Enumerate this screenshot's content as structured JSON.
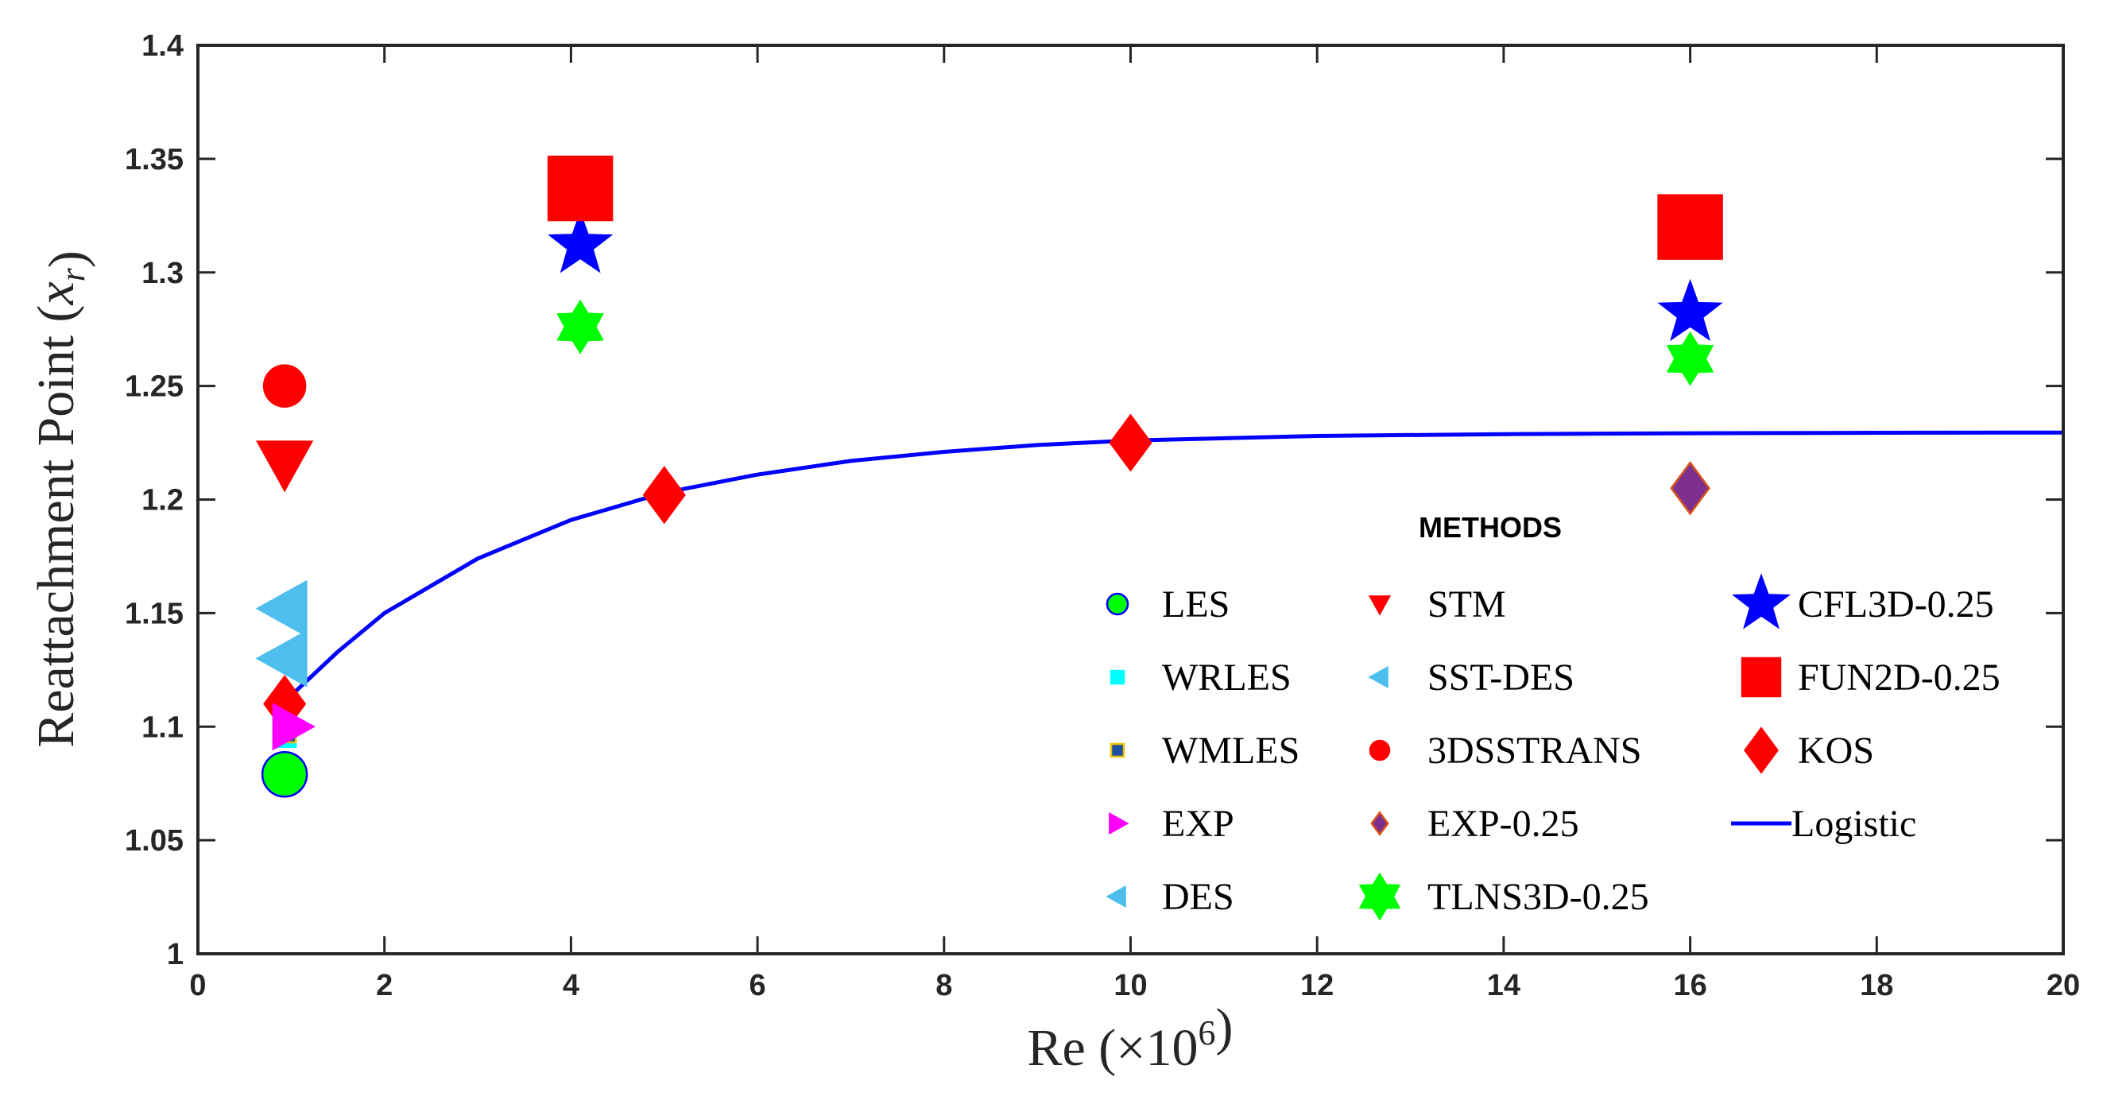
{
  "chart_data": {
    "type": "scatter",
    "title": "",
    "xlabel": "Re (×10⁶)",
    "ylabel": "Reattachment Point (xᵣ)",
    "xlim": [
      0,
      20
    ],
    "ylim": [
      1,
      1.4
    ],
    "xticks": [
      0,
      2,
      4,
      6,
      8,
      10,
      12,
      14,
      16,
      18,
      20
    ],
    "yticks": [
      1,
      1.05,
      1.1,
      1.15,
      1.2,
      1.25,
      1.3,
      1.35,
      1.4
    ],
    "xtick_labels": [
      "0",
      "2",
      "4",
      "6",
      "8",
      "10",
      "12",
      "14",
      "16",
      "18",
      "20"
    ],
    "ytick_labels": [
      "1",
      "1.05",
      "1.1",
      "1.15",
      "1.2",
      "1.25",
      "1.3",
      "1.35",
      "1.4"
    ],
    "grid": false,
    "legend": {
      "title": "METHODS",
      "placement": "lower-right",
      "columns": [
        [
          "LES",
          "WRLES",
          "WMLES",
          "EXP",
          "DES"
        ],
        [
          "STM",
          "SST-DES",
          "3DSSTRANS",
          "EXP-0.25",
          "TLNS3D-0.25"
        ],
        [
          "CFL3D-0.25",
          "FUN2D-0.25",
          "KOS",
          "Logistic"
        ]
      ]
    },
    "series": [
      {
        "name": "LES",
        "marker": "circle",
        "color": "#00ff00",
        "edge": "#0000ff",
        "size": 28,
        "points": [
          [
            0.93,
            1.079
          ]
        ]
      },
      {
        "name": "WRLES",
        "marker": "square",
        "color": "#00ffff",
        "edge": "#00ffff",
        "size": 14,
        "points": [
          [
            0.93,
            1.096
          ]
        ]
      },
      {
        "name": "WMLES",
        "marker": "square",
        "color": "#1f4fa0",
        "edge": "#e8c200",
        "size": 14,
        "points": [
          [
            0.93,
            1.098
          ]
        ]
      },
      {
        "name": "EXP",
        "marker": "triangle-right",
        "color": "#ff00ff",
        "edge": "#ff00ff",
        "size": 28,
        "points": [
          [
            1.0,
            1.1
          ]
        ]
      },
      {
        "name": "DES",
        "marker": "triangle-left",
        "color": "#4dbeee",
        "edge": "#4dbeee",
        "size": 34,
        "points": [
          [
            0.93,
            1.152
          ],
          [
            0.93,
            1.13
          ]
        ]
      },
      {
        "name": "STM",
        "marker": "triangle-down",
        "color": "#ff0000",
        "edge": "#ff0000",
        "size": 34,
        "points": [
          [
            0.93,
            1.216
          ]
        ]
      },
      {
        "name": "SST-DES",
        "marker": "triangle-left",
        "color": "#4dbeee",
        "edge": "#4dbeee",
        "size": 14,
        "points": []
      },
      {
        "name": "3DSSTRANS",
        "marker": "circle",
        "color": "#ff0000",
        "edge": "#ff0000",
        "size": 26,
        "points": [
          [
            0.93,
            1.25
          ]
        ]
      },
      {
        "name": "EXP-0.25",
        "marker": "diamond",
        "color": "#7e2f8e",
        "edge": "#d95319",
        "size": 28,
        "points": [
          [
            16,
            1.205
          ]
        ]
      },
      {
        "name": "TLNS3D-0.25",
        "marker": "hexagram",
        "color": "#00ff00",
        "edge": "#00ff00",
        "size": 32,
        "points": [
          [
            4.1,
            1.276
          ],
          [
            16,
            1.262
          ]
        ]
      },
      {
        "name": "CFL3D-0.25",
        "marker": "pentagram",
        "color": "#0000ff",
        "edge": "#0000ff",
        "size": 36,
        "points": [
          [
            4.1,
            1.312
          ],
          [
            16,
            1.282
          ]
        ]
      },
      {
        "name": "FUN2D-0.25",
        "marker": "square",
        "color": "#ff0000",
        "edge": "#ff0000",
        "size": 40,
        "points": [
          [
            4.1,
            1.337
          ],
          [
            16,
            1.32
          ]
        ]
      },
      {
        "name": "KOS",
        "marker": "diamond",
        "color": "#ff0000",
        "edge": "#ff0000",
        "size": 30,
        "points": [
          [
            0.93,
            1.11
          ],
          [
            5,
            1.202
          ],
          [
            10,
            1.225
          ]
        ]
      }
    ],
    "fit": {
      "name": "Logistic",
      "color": "#0000ff",
      "x": [
        0.93,
        1.5,
        2,
        3,
        4,
        5,
        6,
        7,
        8,
        9,
        10,
        12,
        14,
        16,
        18,
        20
      ],
      "y": [
        1.111,
        1.133,
        1.15,
        1.174,
        1.191,
        1.203,
        1.211,
        1.217,
        1.221,
        1.224,
        1.226,
        1.228,
        1.2288,
        1.2292,
        1.2294,
        1.2295
      ]
    }
  }
}
